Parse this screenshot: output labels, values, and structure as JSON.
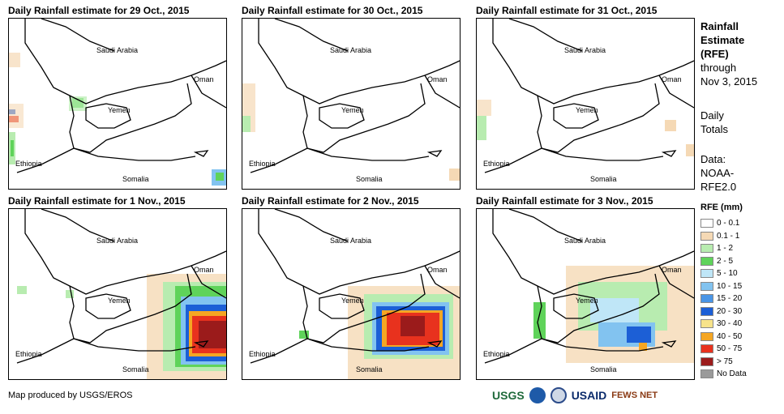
{
  "panels": [
    {
      "title": "Daily Rainfall estimate for 29 Oct., 2015"
    },
    {
      "title": "Daily Rainfall estimate for 30 Oct., 2015"
    },
    {
      "title": "Daily Rainfall estimate for 31 Oct., 2015"
    },
    {
      "title": "Daily Rainfall estimate for 1 Nov., 2015"
    },
    {
      "title": "Daily Rainfall estimate for 2 Nov., 2015"
    },
    {
      "title": "Daily Rainfall estimate for 3 Nov., 2015"
    }
  ],
  "map_labels": {
    "saudi_arabia": "Saudi Arabia",
    "oman": "Oman",
    "yemen": "Yemen",
    "ethiopia": "Ethiopia",
    "somalia": "Somalia"
  },
  "sidebar": {
    "title_line1": "Rainfall",
    "title_line2": "Estimate",
    "title_line3": "(RFE)",
    "through": "through",
    "date": "Nov 3, 2015",
    "daily": "Daily",
    "totals": "Totals",
    "data_label": "Data:",
    "source1": "NOAA-",
    "source2": "RFE2.0"
  },
  "legend": {
    "title": "RFE (mm)",
    "items": [
      {
        "label": "0 - 0.1",
        "color": "#ffffff"
      },
      {
        "label": "0.1 - 1",
        "color": "#f5d9b5"
      },
      {
        "label": "1 - 2",
        "color": "#b8ecb0"
      },
      {
        "label": "2 - 5",
        "color": "#5fd35a"
      },
      {
        "label": "5 - 10",
        "color": "#bfe6f7"
      },
      {
        "label": "10 - 15",
        "color": "#82c3f0"
      },
      {
        "label": "15 - 20",
        "color": "#4a95e6"
      },
      {
        "label": "20 - 30",
        "color": "#1c5fd6"
      },
      {
        "label": "30 - 40",
        "color": "#f7e38a"
      },
      {
        "label": "40 - 50",
        "color": "#f5a623"
      },
      {
        "label": "50 - 75",
        "color": "#e8321e"
      },
      {
        "label": "> 75",
        "color": "#9b1b1b"
      },
      {
        "label": "No Data",
        "color": "#9a9a9a"
      }
    ]
  },
  "credit": "Map produced by USGS/EROS",
  "logos": {
    "usgs": "USGS",
    "usaid": "USAID",
    "fews": "FEWS NET"
  }
}
